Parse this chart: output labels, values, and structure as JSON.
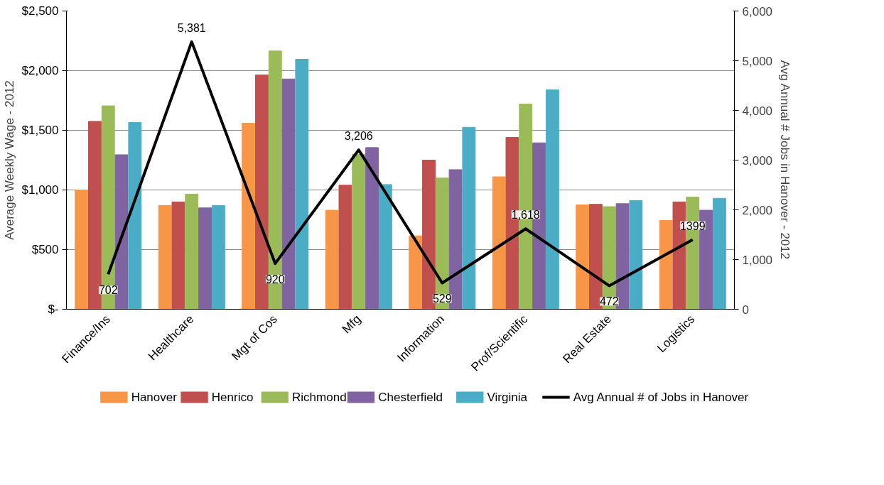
{
  "chart_data": {
    "type": "bar",
    "ylabel": "Average Weekly Wage - 2012",
    "y2label": "Avg Annual # Jobs in Hanover - 2012",
    "categories": [
      "Finance/Ins",
      "Healthcare",
      "Mgt of Cos",
      "Mfg",
      "Information",
      "Prof/Scientific",
      "Real Estate",
      "Logistics"
    ],
    "series": [
      {
        "name": "Hanover",
        "color": "#f79646",
        "values": [
          1000,
          870,
          1560,
          830,
          615,
          1110,
          875,
          745
        ]
      },
      {
        "name": "Henrico",
        "color": "#c0504d",
        "values": [
          1575,
          900,
          1965,
          1040,
          1250,
          1440,
          880,
          900
        ]
      },
      {
        "name": "Richmond",
        "color": "#9bbb59",
        "values": [
          1705,
          965,
          2165,
          1300,
          1100,
          1720,
          860,
          940
        ]
      },
      {
        "name": "Chesterfield",
        "color": "#8064a2",
        "values": [
          1295,
          850,
          1930,
          1355,
          1170,
          1395,
          885,
          830
        ]
      },
      {
        "name": "Virginia",
        "color": "#4bacc6",
        "values": [
          1565,
          870,
          2095,
          1045,
          1525,
          1840,
          910,
          930
        ]
      },
      {
        "name": "Avg Annual # of Jobs in Hanover",
        "type": "line",
        "axis": "y2",
        "color": "#000000",
        "values": [
          702,
          5381,
          920,
          3206,
          529,
          1618,
          472,
          1399
        ],
        "value_labels": [
          "702",
          "5,381",
          "920",
          "3,206",
          "529",
          "1,618",
          "472",
          "1399"
        ]
      }
    ],
    "ylim": [
      0,
      2500
    ],
    "yticks": [
      {
        "value": 0,
        "label": "$-"
      },
      {
        "value": 500,
        "label": "$500"
      },
      {
        "value": 1000,
        "label": "$1,000"
      },
      {
        "value": 1500,
        "label": "$1,500"
      },
      {
        "value": 2000,
        "label": "$2,000"
      },
      {
        "value": 2500,
        "label": "$2,500"
      }
    ],
    "y2lim": [
      0,
      6000
    ],
    "y2ticks": [
      0,
      {
        "value": 1000,
        "label": "1,000"
      },
      {
        "value": 2000,
        "label": "2,000"
      },
      {
        "value": 3000,
        "label": "3,000"
      },
      {
        "value": 4000,
        "label": "4,000"
      },
      {
        "value": 5000,
        "label": "5,000"
      },
      {
        "value": 6000,
        "label": "6,000"
      }
    ],
    "grid": "y",
    "legend": "bottom"
  }
}
